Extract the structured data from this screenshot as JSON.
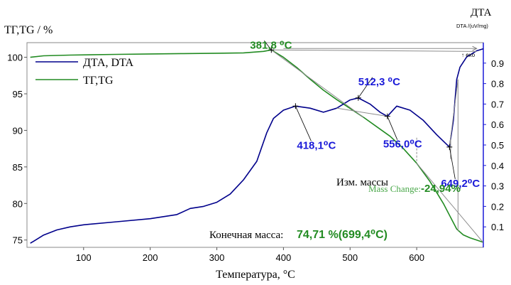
{
  "chart_data": {
    "type": "line",
    "title": "",
    "left_axis_title": "ТГ,TG / %",
    "right_axis_title": "ДТА",
    "right_axis_subtitle": "DTA /(uV/mg)",
    "xlabel": "Температура, °C",
    "exo_label": "↑ exo",
    "xlim": [
      15,
      700
    ],
    "ylim_left": [
      74,
      102
    ],
    "ylim_right": [
      0,
      1.0
    ],
    "x_ticks": [
      "100",
      "200",
      "300",
      "400",
      "500",
      "600"
    ],
    "y_left_ticks": [
      "75",
      "80",
      "85",
      "90",
      "95",
      "100"
    ],
    "y_right_ticks": [
      "0.1",
      "0.2",
      "0.3",
      "0.4",
      "0.5",
      "0.6",
      "0.7",
      "0.8",
      "0.9"
    ],
    "legend": {
      "position": "top-left",
      "entries": [
        {
          "label": "ДТА, DTA",
          "color": "#00008b"
        },
        {
          "label": "ТГ,TG",
          "color": "#228b22"
        }
      ]
    },
    "series": [
      {
        "name": "ТГ,TG",
        "axis": "left",
        "color": "#228b22",
        "x": [
          20,
          40,
          80,
          150,
          200,
          250,
          300,
          340,
          370,
          381.8,
          400,
          420,
          440,
          460,
          480,
          500,
          520,
          540,
          560,
          580,
          600,
          620,
          640,
          660,
          670,
          680,
          690,
          699.4
        ],
        "y": [
          100.0,
          100.2,
          100.3,
          100.4,
          100.45,
          100.5,
          100.55,
          100.6,
          100.8,
          101.0,
          100.0,
          98.6,
          97.0,
          95.5,
          94.2,
          93.0,
          91.8,
          90.5,
          89.2,
          87.5,
          85.5,
          83.0,
          80.0,
          76.5,
          75.7,
          75.3,
          75.0,
          74.71
        ]
      },
      {
        "name": "ДТА, DTA",
        "axis": "right",
        "color": "#00008b",
        "x": [
          20,
          25,
          40,
          60,
          80,
          100,
          150,
          200,
          240,
          260,
          280,
          300,
          320,
          340,
          360,
          375,
          385,
          400,
          418.1,
          440,
          460,
          480,
          500,
          512.3,
          530,
          545,
          556,
          570,
          590,
          610,
          630,
          649.2,
          655,
          660,
          665,
          675,
          690,
          700
        ],
        "y": [
          0.02,
          0.03,
          0.06,
          0.085,
          0.1,
          0.11,
          0.125,
          0.14,
          0.16,
          0.19,
          0.2,
          0.22,
          0.26,
          0.33,
          0.42,
          0.56,
          0.63,
          0.67,
          0.69,
          0.68,
          0.66,
          0.68,
          0.72,
          0.73,
          0.7,
          0.66,
          0.64,
          0.69,
          0.67,
          0.62,
          0.55,
          0.49,
          0.62,
          0.82,
          0.88,
          0.93,
          0.96,
          0.97
        ]
      }
    ],
    "annotations": [
      {
        "text": "381,8 ⁰C",
        "color": "#228b22",
        "x": 381.8,
        "axis": "left",
        "y": 101.0,
        "label_dx": -10,
        "label_dy": -8
      },
      {
        "text": "512,3 ⁰C",
        "color": "#1a1ad8",
        "x": 512.3,
        "axis": "right",
        "y": 0.73,
        "label_dx": 20,
        "label_dy": -24
      },
      {
        "text": "418,1⁰C",
        "color": "#1a1ad8",
        "x": 418.1,
        "axis": "right",
        "y": 0.69,
        "label_dx": 22,
        "label_dy": 54
      },
      {
        "text": "556,0⁰C",
        "color": "#1a1ad8",
        "x": 556.0,
        "axis": "right",
        "y": 0.64,
        "label_dx": 14,
        "label_dy": 38
      },
      {
        "text": "649,2⁰C",
        "color": "#1a1ad8",
        "x": 649.2,
        "axis": "right",
        "y": 0.49,
        "label_dx": 8,
        "label_dy": 50
      }
    ],
    "mass_change": {
      "label": "Mass Change:",
      "value": "-24,94%",
      "label_color": "#4aa84a",
      "value_color": "#228b22"
    },
    "mass_change_ru": "Изм. массы",
    "final_mass": {
      "label": "Конечная масса:",
      "value": "74,71 %(699,4⁰C)",
      "value_color": "#228b22"
    }
  }
}
